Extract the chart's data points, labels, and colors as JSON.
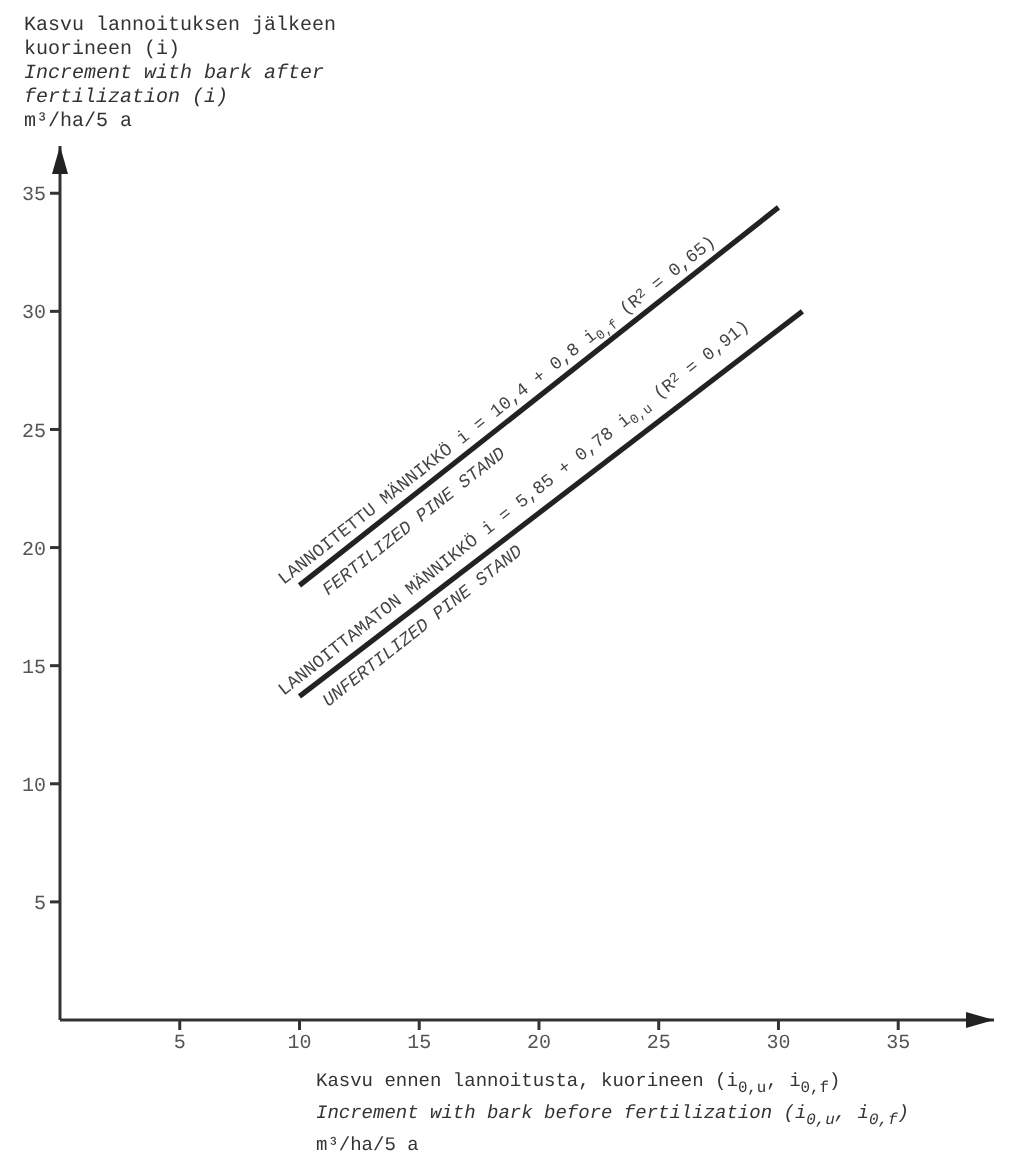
{
  "chart_data": {
    "type": "line",
    "xlabel": "Kasvu ennen lannoitusta, kuorineen (i$_{0,u}$, i$_{0,f}$)\nIncrement with bark before fertilization (i$_{0,u}$, i$_{0,f}$)\nm³/ha/5 a",
    "ylabel": "Kasvu lannoituksen jälkeen kuorineen (i)\nIncrement with bark after fertilization (i)\nm³/ha/5 a",
    "xlim": [
      0,
      39
    ],
    "ylim": [
      0,
      37
    ],
    "xticks": [
      5,
      10,
      15,
      20,
      25,
      30,
      35
    ],
    "yticks": [
      5,
      10,
      15,
      20,
      25,
      30,
      35
    ],
    "grid": false,
    "legend": false,
    "marker": "none",
    "line_style": "solid",
    "series": [
      {
        "color": "#222222",
        "x": [
          10,
          30
        ],
        "values": [
          18.4,
          34.4
        ]
      },
      {
        "color": "#222222",
        "x": [
          10,
          31
        ],
        "values": [
          13.7,
          30.0
        ]
      }
    ],
    "annotations": [
      "LANNOITETTU MÄNNIKKÖ i = 10,4 + 0,8 i$_{0,f}$ (R$^{2}$ = 0,65)",
      "FERTILIZED PINE STAND",
      "LANNOITTAMATON MÄNNIKKÖ i = 5,85 + 0,78 i$_{0,u}$ (R$^{2}$ = 0,91)",
      "UNFERTILIZED PINE STAND"
    ]
  }
}
